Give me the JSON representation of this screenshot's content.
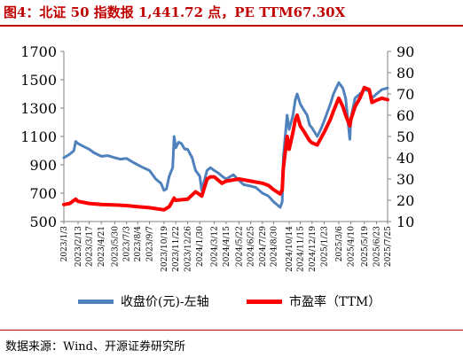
{
  "title": "图4：北证 50 指数报 1,441.72 点，PE TTM67.30X",
  "source": "数据来源：Wind、开源证券研究所",
  "colors": {
    "title": "#c00000",
    "index_line": "#4f81bd",
    "pe_line": "#ff0000"
  },
  "legend": {
    "index_label": "收盘价(元)-左轴",
    "pe_label": "市盈率（TTM）"
  },
  "chart_data": {
    "type": "line",
    "title": "",
    "y_left": {
      "lim": [
        500,
        1700
      ],
      "ticks": [
        500,
        700,
        900,
        1100,
        1300,
        1500,
        1700
      ]
    },
    "y_right": {
      "lim": [
        10,
        90
      ],
      "ticks": [
        10,
        20,
        30,
        40,
        50,
        60,
        70,
        80,
        90
      ]
    },
    "x_ticks": [
      "2023/1/3",
      "2023/2/13",
      "2023/3/17",
      "2023/4/21",
      "2023/5/30",
      "2023/7/3",
      "2023/8/4",
      "2023/9/7",
      "2023/10/19",
      "2023/11/22",
      "2023/12/26",
      "2024/1/30",
      "2024/3/12",
      "2024/4/15",
      "2024/5/22",
      "2024/6/25",
      "2024/7/29",
      "2024/8/30",
      "2024/10/14",
      "2024/11/15",
      "2024/12/19",
      "2025/1/23",
      "2025/3/6",
      "2025/4/10",
      "2025/5/19",
      "2025/6/23",
      "2025/7/25"
    ],
    "grid": false,
    "legend_position": "bottom",
    "series": [
      {
        "name": "收盘价(元)-左轴",
        "axis": "left",
        "points": [
          [
            "2023/1/3",
            950
          ],
          [
            "2023/1/20",
            975
          ],
          [
            "2023/2/1",
            1000
          ],
          [
            "2023/2/6",
            1065
          ],
          [
            "2023/2/13",
            1050
          ],
          [
            "2023/2/28",
            1030
          ],
          [
            "2023/3/17",
            1010
          ],
          [
            "2023/3/31",
            985
          ],
          [
            "2023/4/21",
            960
          ],
          [
            "2023/5/10",
            965
          ],
          [
            "2023/5/30",
            950
          ],
          [
            "2023/6/15",
            940
          ],
          [
            "2023/7/3",
            945
          ],
          [
            "2023/7/20",
            920
          ],
          [
            "2023/8/4",
            900
          ],
          [
            "2023/8/20",
            880
          ],
          [
            "2023/9/7",
            860
          ],
          [
            "2023/9/25",
            800
          ],
          [
            "2023/10/10",
            770
          ],
          [
            "2023/10/19",
            720
          ],
          [
            "2023/10/26",
            730
          ],
          [
            "2023/11/3",
            820
          ],
          [
            "2023/11/13",
            880
          ],
          [
            "2023/11/17",
            1100
          ],
          [
            "2023/11/22",
            1020
          ],
          [
            "2023/11/30",
            1060
          ],
          [
            "2023/12/8",
            1050
          ],
          [
            "2023/12/18",
            1010
          ],
          [
            "2023/12/26",
            1010
          ],
          [
            "2024/1/8",
            950
          ],
          [
            "2024/1/18",
            860
          ],
          [
            "2024/1/30",
            820
          ],
          [
            "2024/2/5",
            720
          ],
          [
            "2024/2/20",
            860
          ],
          [
            "2024/3/1",
            880
          ],
          [
            "2024/3/12",
            860
          ],
          [
            "2024/3/25",
            840
          ],
          [
            "2024/4/3",
            820
          ],
          [
            "2024/4/15",
            800
          ],
          [
            "2024/5/6",
            830
          ],
          [
            "2024/5/22",
            790
          ],
          [
            "2024/6/5",
            760
          ],
          [
            "2024/6/25",
            750
          ],
          [
            "2024/7/10",
            740
          ],
          [
            "2024/7/29",
            700
          ],
          [
            "2024/8/15",
            680
          ],
          [
            "2024/8/30",
            640
          ],
          [
            "2024/9/18",
            600
          ],
          [
            "2024/9/24",
            640
          ],
          [
            "2024/9/27",
            950
          ],
          [
            "2024/10/8",
            1250
          ],
          [
            "2024/10/14",
            1150
          ],
          [
            "2024/10/25",
            1250
          ],
          [
            "2024/11/1",
            1360
          ],
          [
            "2024/11/6",
            1400
          ],
          [
            "2024/11/15",
            1330
          ],
          [
            "2024/11/27",
            1280
          ],
          [
            "2024/12/5",
            1250
          ],
          [
            "2024/12/12",
            1180
          ],
          [
            "2024/12/19",
            1160
          ],
          [
            "2025/1/3",
            1100
          ],
          [
            "2025/1/13",
            1150
          ],
          [
            "2025/1/23",
            1210
          ],
          [
            "2025/2/10",
            1330
          ],
          [
            "2025/2/19",
            1400
          ],
          [
            "2025/3/6",
            1480
          ],
          [
            "2025/3/18",
            1440
          ],
          [
            "2025/3/26",
            1370
          ],
          [
            "2025/4/7",
            1080
          ],
          [
            "2025/4/10",
            1230
          ],
          [
            "2025/4/22",
            1370
          ],
          [
            "2025/5/6",
            1400
          ],
          [
            "2025/5/19",
            1430
          ],
          [
            "2025/6/2",
            1420
          ],
          [
            "2025/6/10",
            1370
          ],
          [
            "2025/6/23",
            1400
          ],
          [
            "2025/7/8",
            1430
          ],
          [
            "2025/7/25",
            1441.72
          ]
        ]
      },
      {
        "name": "市盈率（TTM）",
        "axis": "right",
        "points": [
          [
            "2023/1/3",
            18
          ],
          [
            "2023/1/20",
            18.5
          ],
          [
            "2023/2/6",
            20.5
          ],
          [
            "2023/2/13",
            19.5
          ],
          [
            "2023/3/17",
            18.5
          ],
          [
            "2023/4/21",
            18
          ],
          [
            "2023/5/30",
            17.8
          ],
          [
            "2023/7/3",
            17.5
          ],
          [
            "2023/8/4",
            17
          ],
          [
            "2023/9/7",
            16.5
          ],
          [
            "2023/10/19",
            15.5
          ],
          [
            "2023/11/3",
            17
          ],
          [
            "2023/11/17",
            21
          ],
          [
            "2023/11/22",
            20
          ],
          [
            "2023/12/26",
            20.5
          ],
          [
            "2024/1/18",
            24
          ],
          [
            "2024/2/5",
            22
          ],
          [
            "2024/2/20",
            30
          ],
          [
            "2024/3/1",
            31
          ],
          [
            "2024/3/12",
            31
          ],
          [
            "2024/4/3",
            28
          ],
          [
            "2024/4/15",
            29
          ],
          [
            "2024/5/22",
            30
          ],
          [
            "2024/6/25",
            29
          ],
          [
            "2024/7/29",
            28
          ],
          [
            "2024/8/15",
            27
          ],
          [
            "2024/8/30",
            25
          ],
          [
            "2024/9/18",
            23
          ],
          [
            "2024/9/24",
            25
          ],
          [
            "2024/9/27",
            35
          ],
          [
            "2024/10/8",
            50
          ],
          [
            "2024/10/14",
            44
          ],
          [
            "2024/10/25",
            52
          ],
          [
            "2024/11/1",
            58
          ],
          [
            "2024/11/6",
            60
          ],
          [
            "2024/11/15",
            55
          ],
          [
            "2024/11/27",
            52
          ],
          [
            "2024/12/12",
            48
          ],
          [
            "2024/12/19",
            47
          ],
          [
            "2025/1/3",
            46
          ],
          [
            "2025/1/23",
            52
          ],
          [
            "2025/2/10",
            58
          ],
          [
            "2025/2/19",
            62
          ],
          [
            "2025/3/6",
            68
          ],
          [
            "2025/3/18",
            64
          ],
          [
            "2025/3/26",
            60
          ],
          [
            "2025/4/7",
            55
          ],
          [
            "2025/4/10",
            58
          ],
          [
            "2025/4/22",
            64
          ],
          [
            "2025/5/6",
            68
          ],
          [
            "2025/5/19",
            73
          ],
          [
            "2025/6/2",
            72
          ],
          [
            "2025/6/10",
            66
          ],
          [
            "2025/6/23",
            67
          ],
          [
            "2025/7/8",
            68
          ],
          [
            "2025/7/25",
            67.3
          ]
        ]
      }
    ]
  }
}
